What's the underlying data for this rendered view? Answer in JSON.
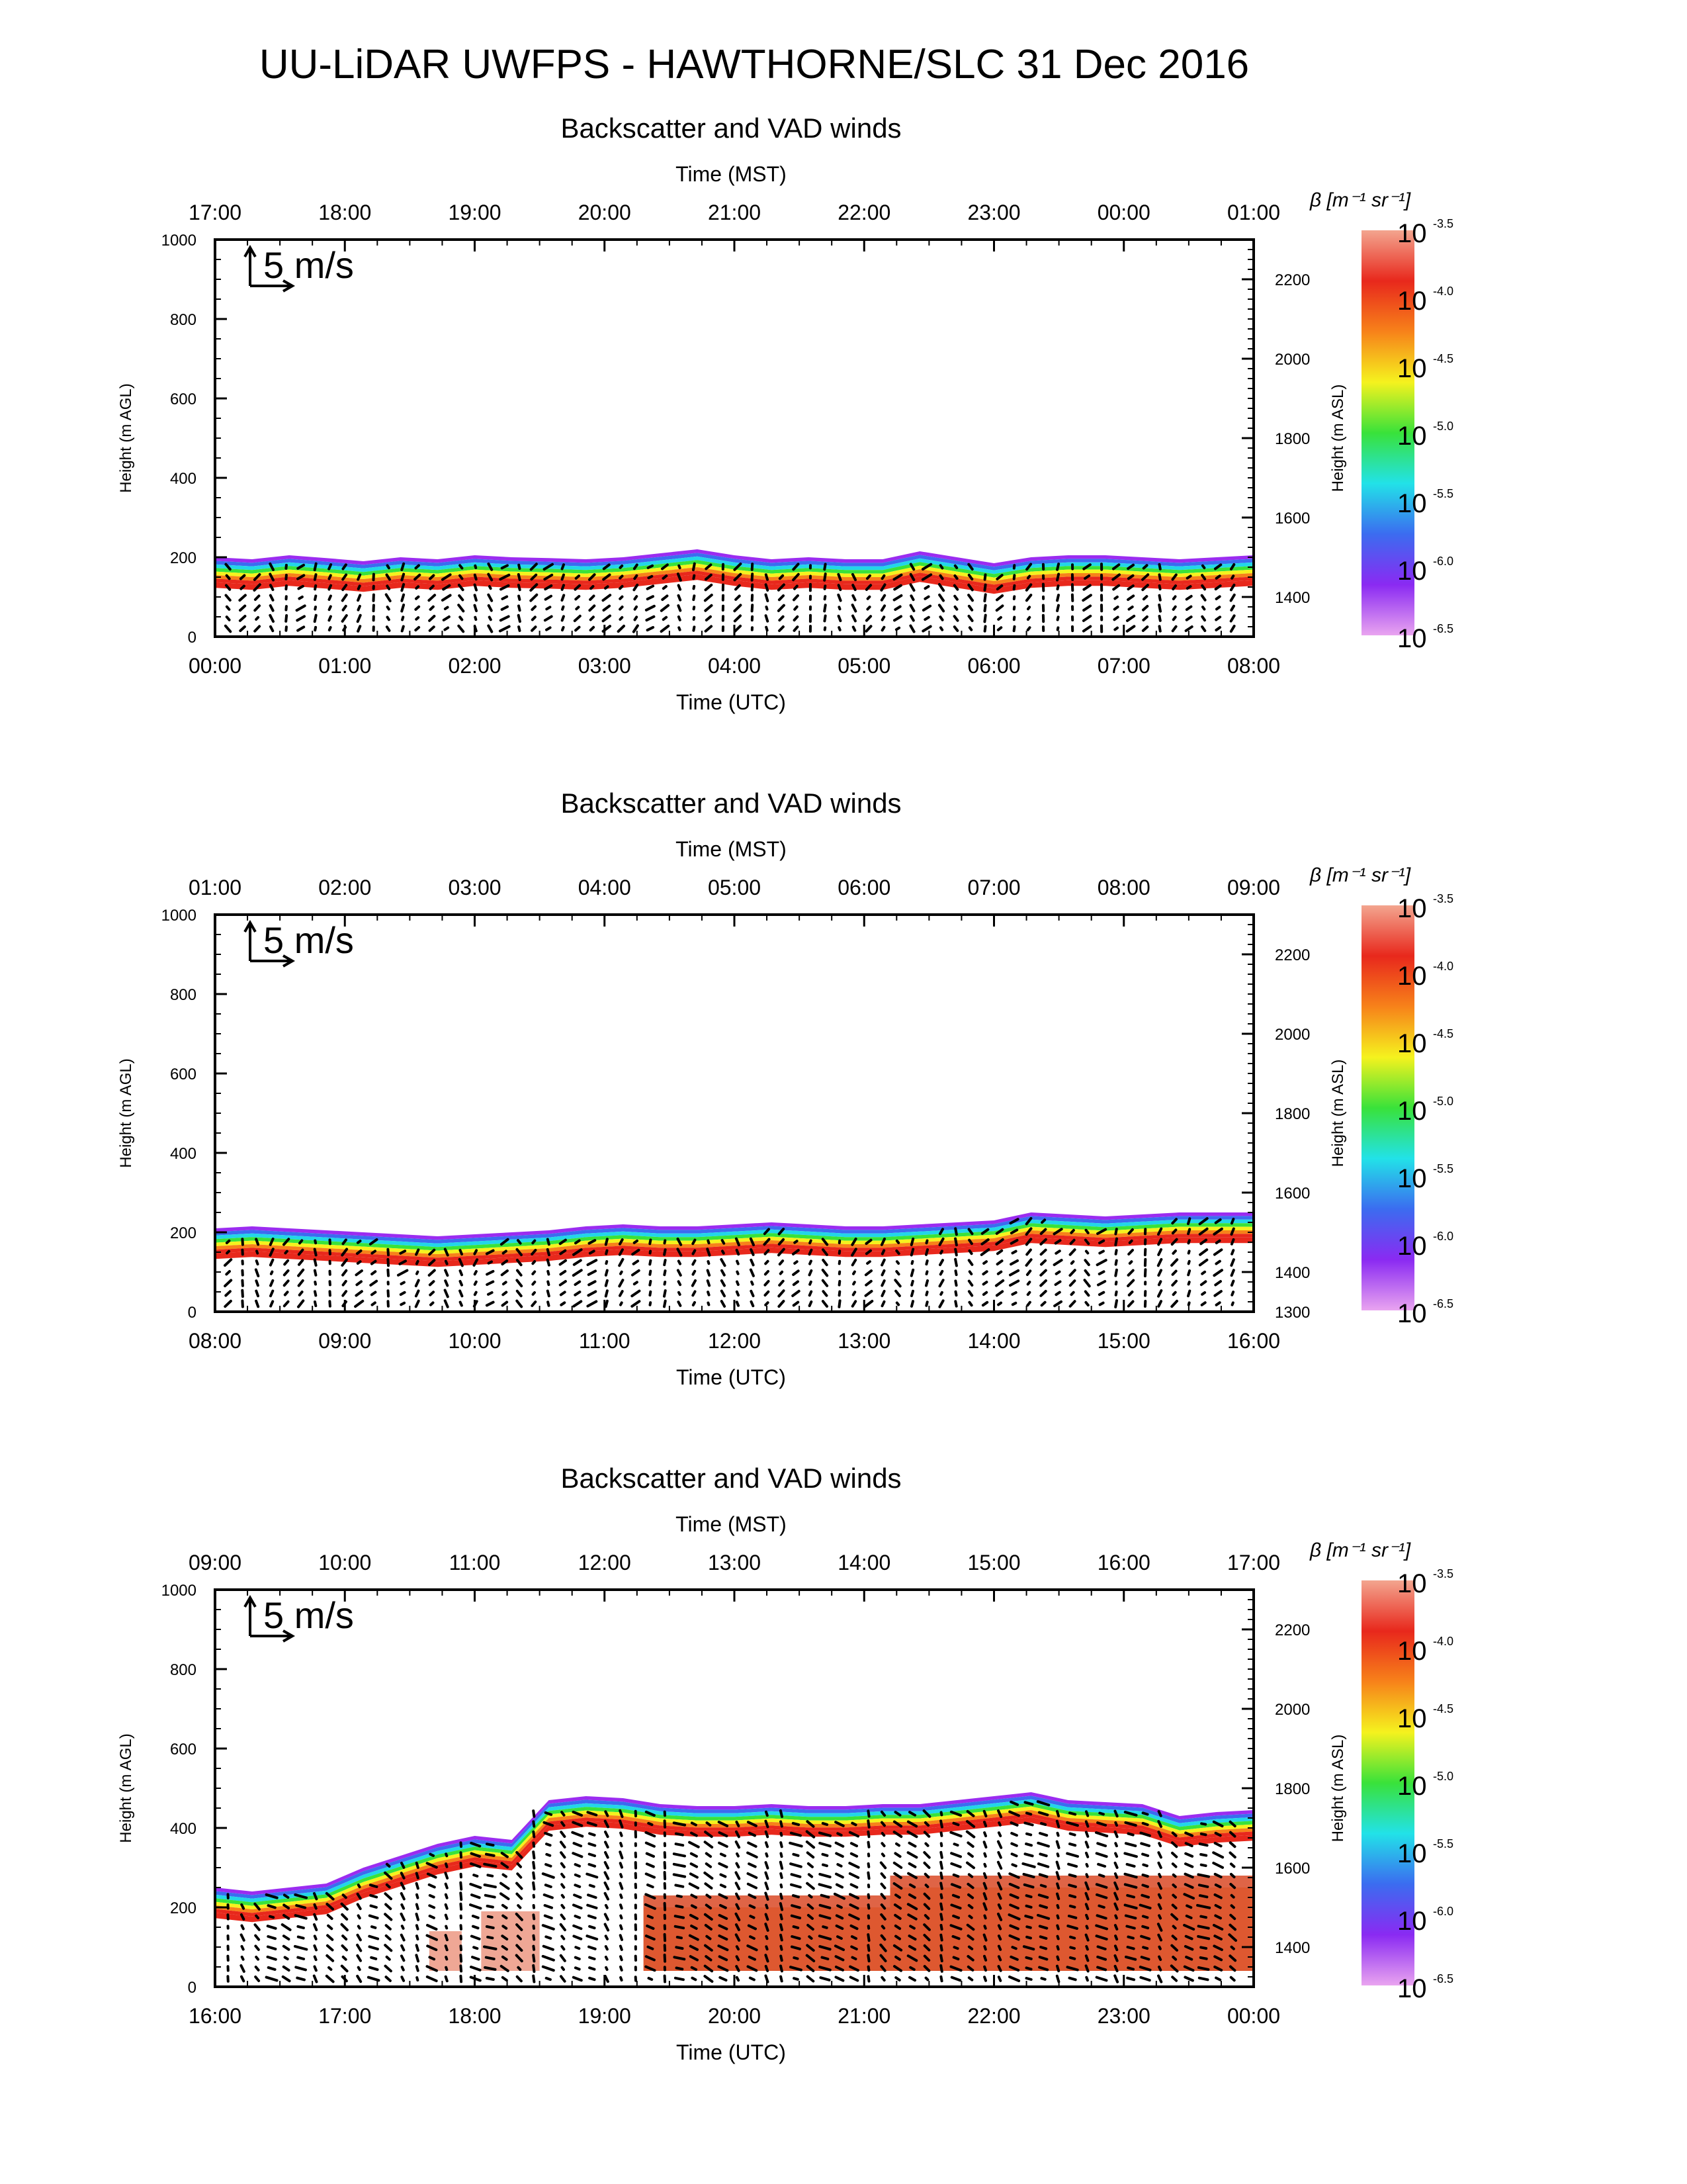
{
  "title": "UU-LiDAR UWFPS - HAWTHORNE/SLC 31 Dec 2016",
  "colorbar": {
    "label": "β [m⁻¹ sr⁻¹]",
    "exponents": [
      "-3.5",
      "-4.0",
      "-4.5",
      "-5.0",
      "-5.5",
      "-6.0",
      "-6.5"
    ],
    "base": "10",
    "colors": [
      "#f3a58f",
      "#e8281c",
      "#f7821a",
      "#f5f21e",
      "#39e23a",
      "#22e2e8",
      "#3b6cf0",
      "#8a2af2",
      "#e9a4f0"
    ]
  },
  "scale_label": "5 m/s",
  "chart_data": [
    {
      "type": "heatmap",
      "title": "Backscatter and VAD winds",
      "xlabel": "Time (UTC)",
      "xlabel_top": "Time (MST)",
      "ylabel": "Height (m AGL)",
      "ylabel_right": "Height (m ASL)",
      "x_ticks": [
        "00:00",
        "01:00",
        "02:00",
        "03:00",
        "04:00",
        "05:00",
        "06:00",
        "07:00",
        "08:00"
      ],
      "x_ticks_top": [
        "17:00",
        "18:00",
        "19:00",
        "20:00",
        "21:00",
        "22:00",
        "23:00",
        "00:00",
        "01:00"
      ],
      "y_ticks": [
        "0",
        "200",
        "400",
        "600",
        "800",
        "1000"
      ],
      "y_ticks_right": [
        "1400",
        "1600",
        "1800",
        "2000",
        "2200"
      ],
      "ylim": [
        0,
        1000
      ],
      "ylim_right_start": 1300,
      "aerosol_top_m": [
        200,
        195,
        205,
        198,
        190,
        200,
        195,
        205,
        200,
        198,
        195,
        200,
        210,
        220,
        205,
        195,
        200,
        195,
        195,
        215,
        200,
        185,
        200,
        205,
        205,
        200,
        195,
        200,
        205
      ],
      "high_backscatter": []
    },
    {
      "type": "heatmap",
      "title": "Backscatter and VAD winds",
      "xlabel": "Time (UTC)",
      "xlabel_top": "Time (MST)",
      "ylabel": "Height (m AGL)",
      "ylabel_right": "Height (m ASL)",
      "x_ticks": [
        "08:00",
        "09:00",
        "10:00",
        "11:00",
        "12:00",
        "13:00",
        "14:00",
        "15:00",
        "16:00"
      ],
      "x_ticks_top": [
        "01:00",
        "02:00",
        "03:00",
        "04:00",
        "05:00",
        "06:00",
        "07:00",
        "08:00",
        "09:00"
      ],
      "y_ticks": [
        "0",
        "200",
        "400",
        "600",
        "800",
        "1000"
      ],
      "y_ticks_right": [
        "1300",
        "1400",
        "1600",
        "1800",
        "2000",
        "2200"
      ],
      "ylim": [
        0,
        1000
      ],
      "ylim_right_start": 1300,
      "aerosol_top_m": [
        210,
        215,
        210,
        205,
        200,
        195,
        190,
        195,
        200,
        205,
        215,
        220,
        215,
        215,
        220,
        225,
        220,
        215,
        215,
        220,
        225,
        230,
        250,
        245,
        240,
        245,
        250,
        250,
        250
      ],
      "high_backscatter": []
    },
    {
      "type": "heatmap",
      "title": "Backscatter and VAD winds",
      "xlabel": "Time (UTC)",
      "xlabel_top": "Time (MST)",
      "ylabel": "Height (m AGL)",
      "ylabel_right": "Height (m ASL)",
      "x_ticks": [
        "16:00",
        "17:00",
        "18:00",
        "19:00",
        "20:00",
        "21:00",
        "22:00",
        "23:00",
        "00:00"
      ],
      "x_ticks_top": [
        "09:00",
        "10:00",
        "11:00",
        "12:00",
        "13:00",
        "14:00",
        "15:00",
        "16:00",
        "17:00"
      ],
      "y_ticks": [
        "0",
        "200",
        "400",
        "600",
        "800",
        "1000"
      ],
      "y_ticks_right": [
        "1400",
        "1600",
        "1800",
        "2000",
        "2200"
      ],
      "ylim": [
        0,
        1000
      ],
      "ylim_right_start": 1300,
      "aerosol_top_m": [
        250,
        240,
        250,
        260,
        300,
        330,
        360,
        380,
        370,
        470,
        480,
        475,
        460,
        455,
        455,
        460,
        455,
        455,
        460,
        460,
        470,
        480,
        490,
        470,
        465,
        460,
        430,
        440,
        445
      ],
      "high_backscatter": [
        {
          "t0": 1.65,
          "t1": 1.9,
          "top": 140
        },
        {
          "t0": 2.05,
          "t1": 2.5,
          "top": 190
        },
        {
          "t0": 3.3,
          "t1": 5.2,
          "top": 230
        },
        {
          "t0": 5.2,
          "t1": 8.0,
          "top": 280
        }
      ]
    }
  ]
}
